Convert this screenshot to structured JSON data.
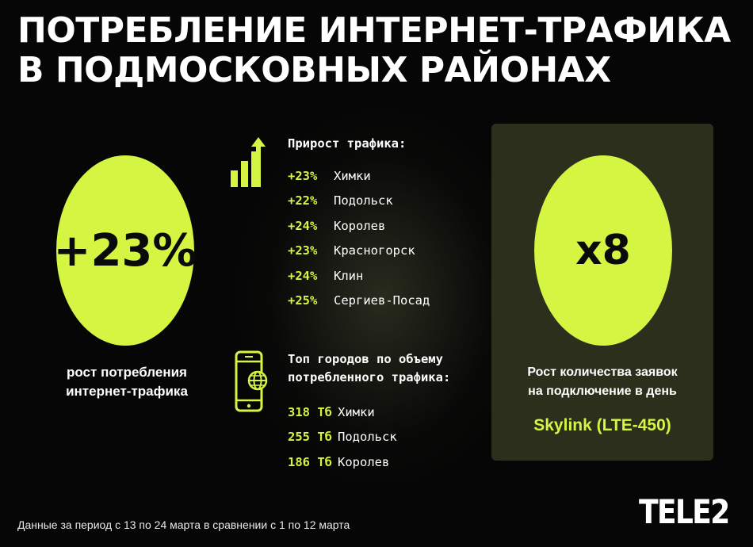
{
  "title": {
    "line1": "ПОТРЕБЛЕНИЕ ИНТЕРНЕТ-ТРАФИКА",
    "line2": "В ПОДМОСКОВНЫХ РАЙОНАХ"
  },
  "left": {
    "value": "+23%",
    "caption_line1": "рост потребления",
    "caption_line2": "интернет-трафика"
  },
  "growth": {
    "icon": "bar-chart-arrow-icon",
    "heading": "Прирост трафика:",
    "items": [
      {
        "value": "+23%",
        "city": "Химки"
      },
      {
        "value": "+22%",
        "city": "Подольск"
      },
      {
        "value": "+24%",
        "city": "Королев"
      },
      {
        "value": "+23%",
        "city": "Красногорск"
      },
      {
        "value": "+24%",
        "city": "Клин"
      },
      {
        "value": "+25%",
        "city": "Сергиев-Посад"
      }
    ]
  },
  "top": {
    "icon": "smartphone-globe-icon",
    "heading_line1": "Топ городов по объему",
    "heading_line2": "потребленного трафика:",
    "items": [
      {
        "value": "318 Тб",
        "city": "Химки"
      },
      {
        "value": "255 Тб",
        "city": "Подольск"
      },
      {
        "value": "186 Тб",
        "city": "Королев"
      }
    ]
  },
  "right": {
    "value": "х8",
    "caption_line1": "Рост количества заявок",
    "caption_line2": "на подключение в день",
    "service": "Skylink (LTE-450)"
  },
  "footnote": "Данные за период с 13 по 24 марта в сравнении с 1 по 12 марта",
  "logo": "TELE2",
  "colors": {
    "accent": "#d4f542",
    "background": "#060606",
    "panel": "#2b2f1c"
  }
}
